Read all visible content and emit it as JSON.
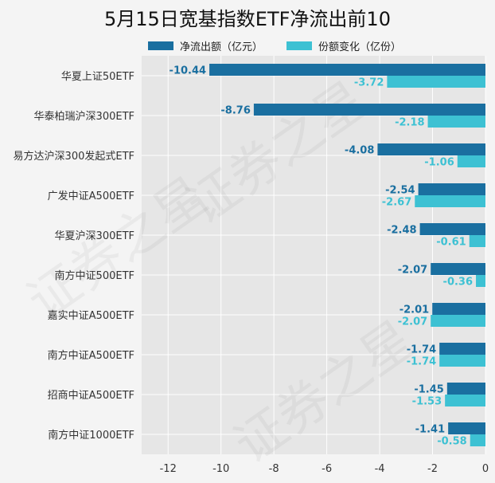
{
  "chart_data": {
    "type": "bar",
    "orientation": "horizontal",
    "title": "5月15日宽基指数ETF净流出前10",
    "categories": [
      "华夏上证50ETF",
      "华泰柏瑞沪深300ETF",
      "易方达沪深300发起式ETF",
      "广发中证A500ETF",
      "华夏沪深300ETF",
      "南方中证500ETF",
      "嘉实中证A500ETF",
      "南方中证A500ETF",
      "招商中证A500ETF",
      "南方中证1000ETF"
    ],
    "series": [
      {
        "name": "净流出额（亿元）",
        "color": "#1a6fa0",
        "values": [
          -10.44,
          -8.76,
          -4.08,
          -2.54,
          -2.48,
          -2.07,
          -2.01,
          -1.74,
          -1.45,
          -1.41
        ],
        "labels": [
          "-10.44",
          "-8.76",
          "-4.08",
          "-2.54",
          "-2.48",
          "-2.07",
          "-2.01",
          "-1.74",
          "-1.45",
          "-1.41"
        ]
      },
      {
        "name": "份额变化（亿份）",
        "color": "#3dc1d3",
        "values": [
          -3.72,
          -2.18,
          -1.06,
          -2.67,
          -0.61,
          -0.36,
          -2.07,
          -1.74,
          -1.53,
          -0.58
        ],
        "labels": [
          "-3.72",
          "-2.18",
          "-1.06",
          "-2.67",
          "-0.61",
          "-0.36",
          "-2.07",
          "-1.74",
          "-1.53",
          "-0.58"
        ]
      }
    ],
    "xlim": [
      -13,
      0
    ],
    "xticks": [
      -12,
      -10,
      -8,
      -6,
      -4,
      -2,
      0
    ],
    "xtick_labels": [
      "-12",
      "-10",
      "-8",
      "-6",
      "-4",
      "-2",
      "0"
    ],
    "grid": true,
    "legend_position": "top",
    "plot_background": "#e6e6e6",
    "watermark": "证券之星"
  }
}
